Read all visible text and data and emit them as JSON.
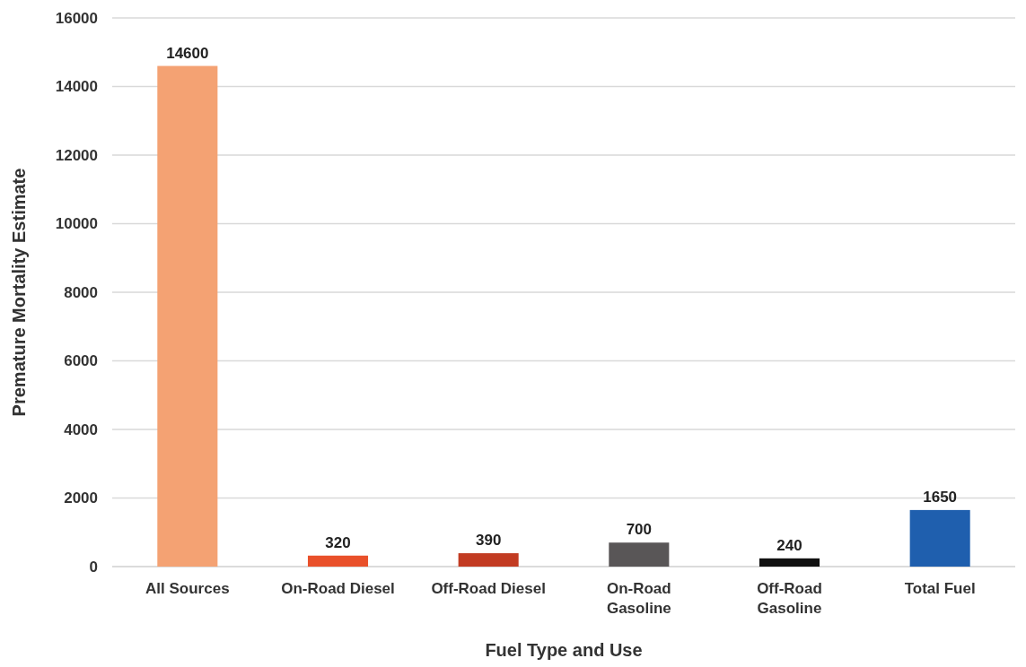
{
  "chart_data": {
    "type": "bar",
    "xlabel": "Fuel Type and Use",
    "ylabel": "Premature Mortality Estimate",
    "categories": [
      "All Sources",
      "On-Road Diesel",
      "Off-Road Diesel",
      "On-Road Gasoline",
      "Off-Road Gasoline",
      "Total Fuel"
    ],
    "values": [
      14600,
      320,
      390,
      700,
      240,
      1650
    ],
    "colors": [
      "#f4a273",
      "#e9502a",
      "#c23b22",
      "#595657",
      "#111111",
      "#1f5fae"
    ],
    "ylim": [
      0,
      16000
    ],
    "yticks": [
      0,
      2000,
      4000,
      6000,
      8000,
      10000,
      12000,
      14000,
      16000
    ],
    "grid": "y",
    "data_labels": true
  }
}
